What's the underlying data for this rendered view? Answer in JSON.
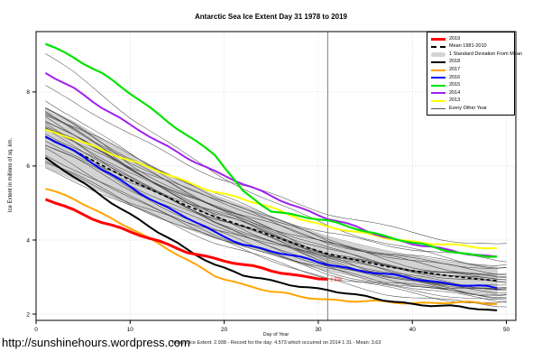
{
  "page": {
    "url_text": "http://sunshinehours.wordpress.com",
    "footer": "Today's Ice Extent: 2.938  - Record for the day: 4.573 which occurred on 2014 1 31  - Mean: 3.63"
  },
  "chart_data": {
    "type": "line",
    "title": "Antarctic Sea Ice Extent Day 31 1978 to 2019",
    "xlabel": "Day of Year",
    "ylabel": "Ice Extent in millions of sq. km.",
    "xlim": [
      0,
      51
    ],
    "ylim": [
      1.83,
      9.63
    ],
    "x_ticks": [
      0,
      10,
      20,
      30,
      40,
      50
    ],
    "y_ticks": [
      2,
      4,
      6,
      8
    ],
    "grid": "dotted",
    "grid_color": "#c9c9c9",
    "vline_day": 31,
    "vline_color": "#808080",
    "annotation": {
      "text": "2.938",
      "day": 31,
      "value": 2.938,
      "color": "#ff0000"
    },
    "days": [
      1,
      4,
      7,
      10,
      13,
      16,
      19,
      22,
      25,
      28,
      31,
      34,
      37,
      40,
      43,
      46,
      49
    ],
    "band": {
      "name": "1 Standard Deviation From Mean",
      "color": "#d3d3d3",
      "edge_color": "#aaaaaa",
      "upper": [
        7.58,
        7.2,
        6.75,
        6.3,
        5.92,
        5.55,
        5.21,
        4.93,
        4.64,
        4.36,
        4.1,
        3.91,
        3.73,
        3.58,
        3.45,
        3.35,
        3.27
      ],
      "lower": [
        5.98,
        5.64,
        5.29,
        4.94,
        4.62,
        4.31,
        4.05,
        3.83,
        3.6,
        3.36,
        3.16,
        3.01,
        2.87,
        2.76,
        2.67,
        2.59,
        2.53
      ]
    },
    "series": [
      {
        "name": "2013",
        "color": "#ffff00",
        "width": 2,
        "values": [
          6.95,
          6.73,
          6.45,
          6.15,
          5.85,
          5.57,
          5.32,
          5.1,
          4.86,
          4.6,
          4.36,
          4.2,
          4.07,
          3.97,
          3.88,
          3.82,
          3.78
        ]
      },
      {
        "name": "2014",
        "color": "#a020f0",
        "width": 2,
        "values": [
          8.5,
          8.1,
          7.6,
          7.1,
          6.65,
          6.25,
          5.85,
          5.5,
          5.2,
          4.88,
          4.57,
          4.35,
          4.1,
          3.9,
          3.75,
          3.63,
          3.55
        ]
      },
      {
        "name": "2015",
        "color": "#00e300",
        "width": 2.2,
        "values": [
          9.3,
          8.95,
          8.5,
          7.95,
          7.4,
          6.85,
          6.3,
          5.3,
          4.8,
          4.65,
          4.5,
          4.32,
          4.12,
          3.92,
          3.75,
          3.62,
          3.55
        ]
      },
      {
        "name": "Mean 1981-2010",
        "color": "#000000",
        "width": 1.7,
        "dash": "4,3",
        "values": [
          6.78,
          6.42,
          6.02,
          5.62,
          5.27,
          4.93,
          4.63,
          4.38,
          4.12,
          3.86,
          3.63,
          3.46,
          3.3,
          3.17,
          3.06,
          2.97,
          2.9
        ]
      },
      {
        "name": "2016",
        "color": "#0000ff",
        "width": 2,
        "values": [
          6.83,
          6.4,
          5.9,
          5.45,
          5.0,
          4.6,
          4.2,
          3.9,
          3.7,
          3.52,
          3.36,
          3.2,
          3.07,
          2.96,
          2.86,
          2.77,
          2.7
        ]
      },
      {
        "name": "2017",
        "color": "#ffa500",
        "width": 2,
        "values": [
          5.4,
          5.1,
          4.7,
          4.35,
          3.9,
          3.45,
          3.05,
          2.8,
          2.6,
          2.48,
          2.4,
          2.35,
          2.32,
          2.3,
          2.32,
          2.3,
          2.27
        ]
      },
      {
        "name": "2018",
        "color": "#000000",
        "width": 2,
        "values": [
          6.2,
          5.7,
          5.2,
          4.7,
          4.2,
          3.75,
          3.35,
          3.05,
          2.88,
          2.76,
          2.66,
          2.5,
          2.38,
          2.28,
          2.22,
          2.16,
          2.1
        ]
      },
      {
        "name": "2019",
        "color": "#ff0000",
        "width": 3,
        "values": [
          5.1,
          4.8,
          4.5,
          4.22,
          3.95,
          3.7,
          3.5,
          3.32,
          3.18,
          3.04,
          2.938
        ]
      }
    ],
    "other_years": {
      "name": "Every Other Year",
      "color": "#333333",
      "width": 0.55,
      "endpoints": [
        [
          9.0,
          3.3
        ],
        [
          8.1,
          3.9
        ],
        [
          7.75,
          3.0
        ],
        [
          7.6,
          2.6
        ],
        [
          7.55,
          3.2
        ],
        [
          7.5,
          2.8
        ],
        [
          7.45,
          3.45
        ],
        [
          7.4,
          2.5
        ],
        [
          7.35,
          3.1
        ],
        [
          7.3,
          2.7
        ],
        [
          7.25,
          2.95
        ],
        [
          7.2,
          3.3
        ],
        [
          7.15,
          2.6
        ],
        [
          7.1,
          2.85
        ],
        [
          7.05,
          3.15
        ],
        [
          7.0,
          2.55
        ],
        [
          6.95,
          2.75
        ],
        [
          6.9,
          3.0
        ],
        [
          6.85,
          2.45
        ],
        [
          6.8,
          2.65
        ],
        [
          6.7,
          2.9
        ],
        [
          6.6,
          2.4
        ],
        [
          6.5,
          2.75
        ],
        [
          6.4,
          2.3
        ],
        [
          6.3,
          2.6
        ],
        [
          6.2,
          2.2
        ],
        [
          6.1,
          2.5
        ],
        [
          5.95,
          2.35
        ]
      ]
    },
    "legend_position": "top-right"
  },
  "legend": {
    "entries": [
      {
        "label": "2019",
        "swatch": "line",
        "color": "#ff0000",
        "thickness": 3
      },
      {
        "label": "Mean 1981-2010",
        "swatch": "dash",
        "color": "#000000",
        "thickness": 2
      },
      {
        "label": "1 Standard Deviation From Mean",
        "swatch": "band",
        "color": "#d3d3d3",
        "thickness": 5
      },
      {
        "label": "2018",
        "swatch": "line",
        "color": "#000000",
        "thickness": 2
      },
      {
        "label": "2017",
        "swatch": "line",
        "color": "#ffa500",
        "thickness": 2
      },
      {
        "label": "2016",
        "swatch": "line",
        "color": "#0000ff",
        "thickness": 2
      },
      {
        "label": "2015",
        "swatch": "line",
        "color": "#00e300",
        "thickness": 2
      },
      {
        "label": "2014",
        "swatch": "line",
        "color": "#a020f0",
        "thickness": 2
      },
      {
        "label": "2013",
        "swatch": "line",
        "color": "#ffff00",
        "thickness": 2
      },
      {
        "label": "Every Other Year",
        "swatch": "line",
        "color": "#555555",
        "thickness": 1
      }
    ]
  }
}
